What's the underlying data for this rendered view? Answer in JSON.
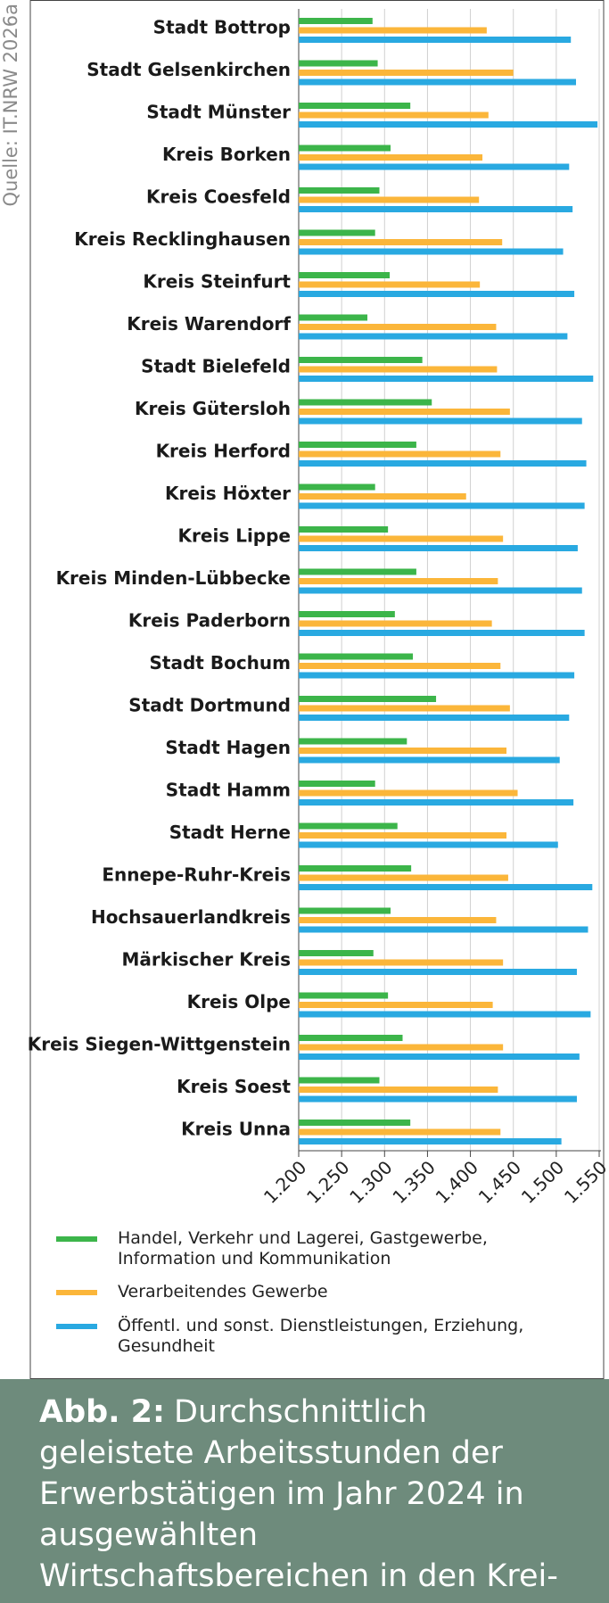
{
  "source": "Quelle: IT.NRW 2026a",
  "caption_label": "Abb. 2:",
  "caption": "Durchschnittlich geleistete Arbeitsstunden der Erwerbstätigen im Jahr 2024 in ausgewählten Wirtschaftsbereichen in den Krei-sen/kreisfreien Städten Westfalens",
  "chart_data": {
    "type": "hbar",
    "categories": [
      "Stadt Bottrop",
      "Stadt Gelsenkirchen",
      "Stadt Münster",
      "Kreis Borken",
      "Kreis Coesfeld",
      "Kreis Recklinghausen",
      "Kreis Steinfurt",
      "Kreis Warendorf",
      "Stadt Bielefeld",
      "Kreis Gütersloh",
      "Kreis Herford",
      "Kreis Höxter",
      "Kreis Lippe",
      "Kreis Minden-Lübbecke",
      "Kreis Paderborn",
      "Stadt Bochum",
      "Stadt Dortmund",
      "Stadt Hagen",
      "Stadt Hamm",
      "Stadt Herne",
      "Ennepe-Ruhr-Kreis",
      "Hochsauerlandkreis",
      "Märkischer Kreis",
      "Kreis Olpe",
      "Kreis Siegen-Wittgenstein",
      "Kreis Soest",
      "Kreis Unna"
    ],
    "series": [
      {
        "name": "Handel, Verkehr und Lagerei, Gastgewerbe, Information und Kommunikation",
        "color": "#3cb54a",
        "values": [
          1286,
          1292,
          1330,
          1307,
          1294,
          1289,
          1306,
          1280,
          1344,
          1355,
          1337,
          1289,
          1304,
          1337,
          1312,
          1333,
          1360,
          1326,
          1289,
          1315,
          1331,
          1307,
          1287,
          1304,
          1321,
          1294,
          1330
        ]
      },
      {
        "name": "Verarbeitendes Gewerbe",
        "color": "#fbb63a",
        "values": [
          1419,
          1450,
          1421,
          1414,
          1410,
          1437,
          1411,
          1430,
          1431,
          1446,
          1435,
          1395,
          1438,
          1432,
          1425,
          1435,
          1446,
          1442,
          1455,
          1442,
          1444,
          1430,
          1438,
          1426,
          1438,
          1432,
          1435
        ]
      },
      {
        "name": "Öffentl. und sonst. Dienstleistungen, Erziehung, Gesundheit",
        "color": "#29a9e1",
        "values": [
          1517,
          1523,
          1548,
          1515,
          1519,
          1508,
          1521,
          1513,
          1543,
          1530,
          1535,
          1533,
          1525,
          1530,
          1533,
          1521,
          1515,
          1504,
          1520,
          1502,
          1542,
          1537,
          1524,
          1540,
          1527,
          1524,
          1506
        ]
      }
    ],
    "xlim": [
      1200,
      1550
    ],
    "xticks": [
      {
        "value": 1200,
        "label": "1.200"
      },
      {
        "value": 1250,
        "label": "1.250"
      },
      {
        "value": 1300,
        "label": "1.300"
      },
      {
        "value": 1350,
        "label": "1.350"
      },
      {
        "value": 1400,
        "label": "1.400"
      },
      {
        "value": 1450,
        "label": "1.450"
      },
      {
        "value": 1500,
        "label": "1.500"
      },
      {
        "value": 1550,
        "label": "1.550"
      }
    ],
    "grid": true
  }
}
